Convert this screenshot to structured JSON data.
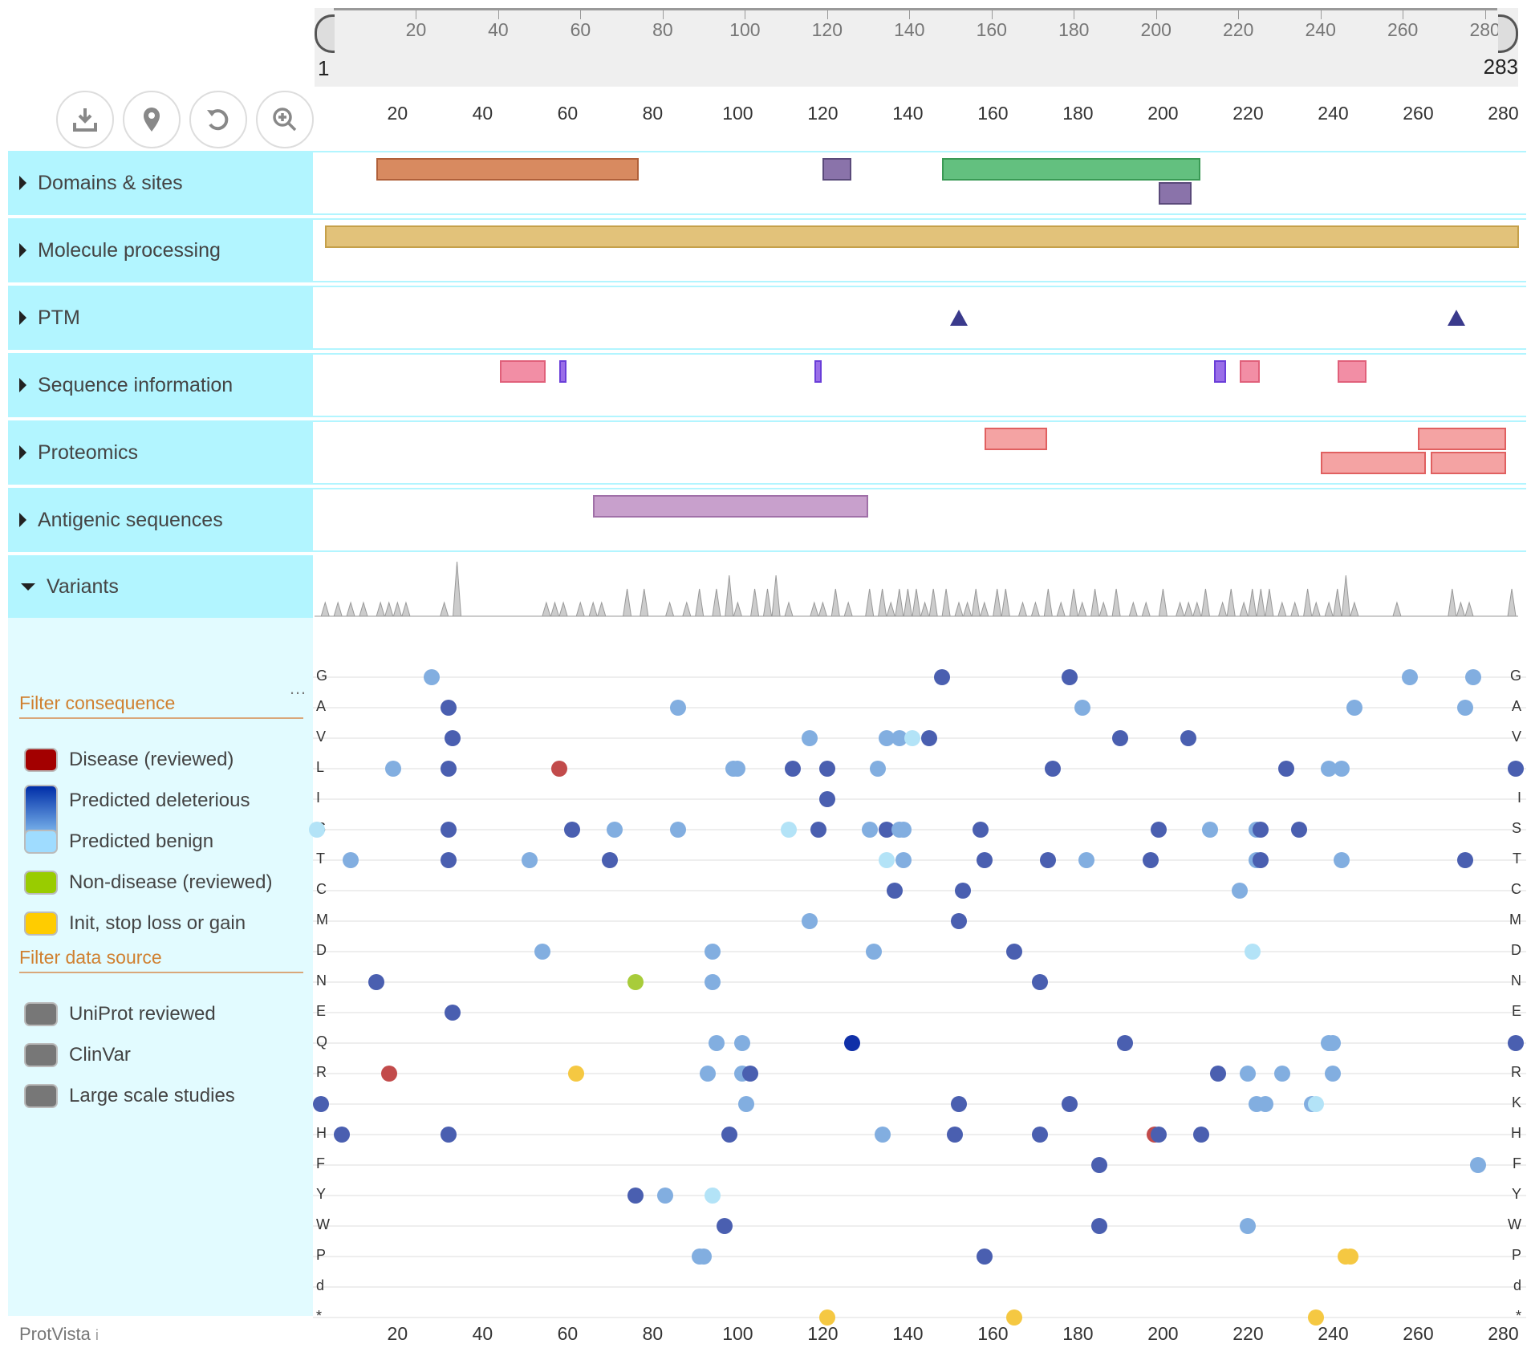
{
  "sequence": {
    "start": "1",
    "end": "283",
    "length": 283
  },
  "axis_ticks": [
    "20",
    "40",
    "60",
    "80",
    "100",
    "120",
    "140",
    "160",
    "180",
    "200",
    "220",
    "240",
    "260",
    "280"
  ],
  "tools": [
    {
      "name": "download-icon"
    },
    {
      "name": "location-pin-icon"
    },
    {
      "name": "reset-icon"
    },
    {
      "name": "zoom-in-icon"
    }
  ],
  "tracks": [
    {
      "label": "Domains & sites",
      "features": [
        {
          "start": 15,
          "end": 76,
          "row": 0,
          "color": "#d88a60",
          "border": "#b0603a"
        },
        {
          "start": 120,
          "end": 126,
          "row": 0,
          "color": "#8a73aa",
          "border": "#5a4a7a"
        },
        {
          "start": 148,
          "end": 208,
          "row": 0,
          "color": "#63c07f",
          "border": "#3a9a55"
        },
        {
          "start": 199,
          "end": 206,
          "row": 1,
          "color": "#8a73aa",
          "border": "#5a4a7a"
        }
      ]
    },
    {
      "label": "Molecule processing",
      "features": [
        {
          "start": 3,
          "end": 283,
          "row": 0,
          "color": "#e2c27a",
          "border": "#c5a04a"
        }
      ]
    },
    {
      "label": "PTM",
      "sites": [
        152,
        269
      ]
    },
    {
      "label": "Sequence information",
      "features": [
        {
          "start": 44,
          "end": 54,
          "row": 0,
          "color": "#f28ea5",
          "border": "#e0607a"
        },
        {
          "start": 58,
          "end": 59,
          "row": 0,
          "color": "#9a6ee8",
          "border": "#6a3ed8"
        },
        {
          "start": 118,
          "end": 119,
          "row": 0,
          "color": "#9a6ee8",
          "border": "#6a3ed8"
        },
        {
          "start": 212,
          "end": 214,
          "row": 0,
          "color": "#9a6ee8",
          "border": "#6a3ed8"
        },
        {
          "start": 218,
          "end": 222,
          "row": 0,
          "color": "#f28ea5",
          "border": "#e0607a"
        },
        {
          "start": 241,
          "end": 247,
          "row": 0,
          "color": "#f28ea5",
          "border": "#e0607a"
        }
      ]
    },
    {
      "label": "Proteomics",
      "features": [
        {
          "start": 158,
          "end": 172,
          "row": 0,
          "color": "#f4a3a3",
          "border": "#e06060"
        },
        {
          "start": 260,
          "end": 280,
          "row": 0,
          "color": "#f4a3a3",
          "border": "#e06060"
        },
        {
          "start": 237,
          "end": 261,
          "row": 1,
          "color": "#f4a3a3",
          "border": "#e06060"
        },
        {
          "start": 263,
          "end": 280,
          "row": 1,
          "color": "#f4a3a3",
          "border": "#e06060"
        }
      ]
    },
    {
      "label": "Antigenic sequences",
      "features": [
        {
          "start": 66,
          "end": 130,
          "row": 0,
          "color": "#c8a0cc",
          "border": "#a070a8"
        }
      ]
    }
  ],
  "variants": {
    "label": "Variants",
    "histogram": [
      [
        3,
        1
      ],
      [
        6,
        1
      ],
      [
        9,
        1
      ],
      [
        12,
        1
      ],
      [
        16,
        1
      ],
      [
        18,
        1
      ],
      [
        20,
        1
      ],
      [
        22,
        1
      ],
      [
        31,
        1
      ],
      [
        34,
        4
      ],
      [
        55,
        1
      ],
      [
        57,
        1
      ],
      [
        59,
        1
      ],
      [
        63,
        1
      ],
      [
        66,
        1
      ],
      [
        68,
        1
      ],
      [
        74,
        2
      ],
      [
        78,
        2
      ],
      [
        84,
        1
      ],
      [
        88,
        1
      ],
      [
        91,
        2
      ],
      [
        95,
        2
      ],
      [
        98,
        3
      ],
      [
        100,
        1
      ],
      [
        104,
        2
      ],
      [
        107,
        2
      ],
      [
        109,
        3
      ],
      [
        112,
        1
      ],
      [
        118,
        1
      ],
      [
        120,
        1
      ],
      [
        123,
        2
      ],
      [
        126,
        1
      ],
      [
        131,
        2
      ],
      [
        134,
        2
      ],
      [
        136,
        1
      ],
      [
        138,
        2
      ],
      [
        140,
        2
      ],
      [
        142,
        2
      ],
      [
        144,
        1
      ],
      [
        146,
        2
      ],
      [
        149,
        2
      ],
      [
        152,
        1
      ],
      [
        154,
        1
      ],
      [
        156,
        2
      ],
      [
        158,
        1
      ],
      [
        161,
        2
      ],
      [
        163,
        2
      ],
      [
        167,
        1
      ],
      [
        170,
        1
      ],
      [
        173,
        2
      ],
      [
        176,
        1
      ],
      [
        179,
        2
      ],
      [
        181,
        1
      ],
      [
        184,
        2
      ],
      [
        186,
        1
      ],
      [
        189,
        2
      ],
      [
        193,
        1
      ],
      [
        196,
        1
      ],
      [
        200,
        2
      ],
      [
        204,
        1
      ],
      [
        206,
        1
      ],
      [
        208,
        1
      ],
      [
        210,
        2
      ],
      [
        214,
        1
      ],
      [
        216,
        2
      ],
      [
        219,
        1
      ],
      [
        221,
        2
      ],
      [
        223,
        2
      ],
      [
        225,
        2
      ],
      [
        228,
        1
      ],
      [
        231,
        1
      ],
      [
        234,
        2
      ],
      [
        236,
        1
      ],
      [
        239,
        1
      ],
      [
        241,
        2
      ],
      [
        243,
        3
      ],
      [
        245,
        1
      ],
      [
        255,
        1
      ],
      [
        268,
        2
      ],
      [
        270,
        1
      ],
      [
        272,
        1
      ],
      [
        282,
        2
      ]
    ],
    "filter_consequence": {
      "title": "Filter consequence",
      "options": [
        {
          "label": "Disease (reviewed)",
          "color": "#a30000"
        },
        {
          "label": "Predicted deleterious",
          "color": "#002ea8"
        },
        {
          "label": "Predicted benign",
          "color": "#9fdcff"
        },
        {
          "label": "Non-disease (reviewed)",
          "color": "#99cc00"
        },
        {
          "label": "Init, stop loss or gain",
          "color": "#ffcc00"
        }
      ]
    },
    "filter_source": {
      "title": "Filter data source",
      "options": [
        {
          "label": "UniProt reviewed",
          "color": "#777777"
        },
        {
          "label": "ClinVar",
          "color": "#777777"
        },
        {
          "label": "Large scale studies",
          "color": "#777777"
        }
      ]
    },
    "more_label": "…",
    "amino_acids": [
      "G",
      "A",
      "V",
      "L",
      "I",
      "S",
      "T",
      "C",
      "M",
      "D",
      "N",
      "E",
      "Q",
      "R",
      "K",
      "H",
      "F",
      "Y",
      "W",
      "P",
      "d",
      "*"
    ],
    "points": [
      {
        "aa": "G",
        "pos": [
          [
            28,
            "b"
          ],
          [
            148,
            "d"
          ],
          [
            178,
            "d"
          ],
          [
            258,
            "b"
          ],
          [
            273,
            "b"
          ]
        ]
      },
      {
        "aa": "A",
        "pos": [
          [
            32,
            "d"
          ],
          [
            86,
            "b"
          ],
          [
            181,
            "b"
          ],
          [
            245,
            "b"
          ],
          [
            271,
            "b"
          ]
        ]
      },
      {
        "aa": "V",
        "pos": [
          [
            33,
            "d"
          ],
          [
            117,
            "b"
          ],
          [
            135,
            "b"
          ],
          [
            138,
            "b"
          ],
          [
            141,
            "l"
          ],
          [
            145,
            "d"
          ],
          [
            190,
            "d"
          ],
          [
            206,
            "d"
          ]
        ]
      },
      {
        "aa": "L",
        "pos": [
          [
            19,
            "b"
          ],
          [
            32,
            "d"
          ],
          [
            58,
            "r"
          ],
          [
            99,
            "b"
          ],
          [
            100,
            "b"
          ],
          [
            113,
            "d"
          ],
          [
            121,
            "d"
          ],
          [
            133,
            "b"
          ],
          [
            174,
            "d"
          ],
          [
            229,
            "d"
          ],
          [
            239,
            "b"
          ],
          [
            242,
            "b"
          ],
          [
            283,
            "d"
          ]
        ]
      },
      {
        "aa": "I",
        "pos": [
          [
            121,
            "d"
          ]
        ]
      },
      {
        "aa": "S",
        "pos": [
          [
            1,
            "l"
          ],
          [
            32,
            "d"
          ],
          [
            61,
            "d"
          ],
          [
            71,
            "b"
          ],
          [
            86,
            "b"
          ],
          [
            112,
            "l"
          ],
          [
            119,
            "d"
          ],
          [
            131,
            "b"
          ],
          [
            135,
            "d"
          ],
          [
            138,
            "b"
          ],
          [
            139,
            "b"
          ],
          [
            157,
            "d"
          ],
          [
            199,
            "d"
          ],
          [
            211,
            "b"
          ],
          [
            222,
            "b"
          ],
          [
            223,
            "d"
          ],
          [
            232,
            "d"
          ]
        ]
      },
      {
        "aa": "T",
        "pos": [
          [
            9,
            "b"
          ],
          [
            32,
            "d"
          ],
          [
            51,
            "b"
          ],
          [
            70,
            "d"
          ],
          [
            135,
            "l"
          ],
          [
            139,
            "b"
          ],
          [
            158,
            "d"
          ],
          [
            173,
            "d"
          ],
          [
            182,
            "b"
          ],
          [
            197,
            "d"
          ],
          [
            222,
            "b"
          ],
          [
            223,
            "d"
          ],
          [
            242,
            "b"
          ],
          [
            271,
            "d"
          ]
        ]
      },
      {
        "aa": "C",
        "pos": [
          [
            137,
            "d"
          ],
          [
            153,
            "d"
          ],
          [
            218,
            "b"
          ]
        ]
      },
      {
        "aa": "M",
        "pos": [
          [
            117,
            "b"
          ],
          [
            152,
            "d"
          ]
        ]
      },
      {
        "aa": "D",
        "pos": [
          [
            54,
            "b"
          ],
          [
            94,
            "b"
          ],
          [
            132,
            "b"
          ],
          [
            165,
            "d"
          ],
          [
            221,
            "l"
          ]
        ]
      },
      {
        "aa": "N",
        "pos": [
          [
            15,
            "d"
          ],
          [
            76,
            "g"
          ],
          [
            94,
            "b"
          ],
          [
            171,
            "d"
          ]
        ]
      },
      {
        "aa": "E",
        "pos": [
          [
            33,
            "d"
          ]
        ]
      },
      {
        "aa": "Q",
        "pos": [
          [
            95,
            "b"
          ],
          [
            101,
            "b"
          ],
          [
            127,
            "x"
          ],
          [
            191,
            "d"
          ],
          [
            239,
            "b"
          ],
          [
            240,
            "b"
          ],
          [
            283,
            "d"
          ]
        ]
      },
      {
        "aa": "R",
        "pos": [
          [
            18,
            "r"
          ],
          [
            62,
            "y"
          ],
          [
            93,
            "b"
          ],
          [
            101,
            "b"
          ],
          [
            103,
            "d"
          ],
          [
            213,
            "d"
          ],
          [
            220,
            "b"
          ],
          [
            228,
            "b"
          ],
          [
            240,
            "b"
          ]
        ]
      },
      {
        "aa": "K",
        "pos": [
          [
            2,
            "d"
          ],
          [
            102,
            "b"
          ],
          [
            152,
            "d"
          ],
          [
            178,
            "d"
          ],
          [
            222,
            "b"
          ],
          [
            224,
            "b"
          ],
          [
            235,
            "b"
          ],
          [
            236,
            "l"
          ]
        ]
      },
      {
        "aa": "H",
        "pos": [
          [
            7,
            "d"
          ],
          [
            32,
            "d"
          ],
          [
            98,
            "d"
          ],
          [
            134,
            "b"
          ],
          [
            151,
            "d"
          ],
          [
            171,
            "d"
          ],
          [
            198,
            "r"
          ],
          [
            199,
            "d"
          ],
          [
            209,
            "d"
          ]
        ]
      },
      {
        "aa": "F",
        "pos": [
          [
            185,
            "d"
          ],
          [
            274,
            "b"
          ]
        ]
      },
      {
        "aa": "Y",
        "pos": [
          [
            76,
            "d"
          ],
          [
            83,
            "b"
          ],
          [
            94,
            "l"
          ]
        ]
      },
      {
        "aa": "W",
        "pos": [
          [
            97,
            "d"
          ],
          [
            185,
            "d"
          ],
          [
            220,
            "b"
          ]
        ]
      },
      {
        "aa": "P",
        "pos": [
          [
            91,
            "b"
          ],
          [
            92,
            "b"
          ],
          [
            158,
            "d"
          ],
          [
            243,
            "y"
          ],
          [
            244,
            "y"
          ]
        ]
      },
      {
        "aa": "d",
        "pos": []
      },
      {
        "aa": "*",
        "pos": [
          [
            121,
            "y"
          ],
          [
            165,
            "y"
          ],
          [
            236,
            "y"
          ]
        ]
      }
    ]
  },
  "point_colors": {
    "d": "#4a5fb0",
    "b": "#82aee0",
    "l": "#b3e3f7",
    "x": "#1030a8",
    "r": "#c24b4b",
    "g": "#a8cc3a",
    "y": "#f5c842"
  },
  "credit": {
    "label": "ProtVista",
    "info": "i"
  }
}
